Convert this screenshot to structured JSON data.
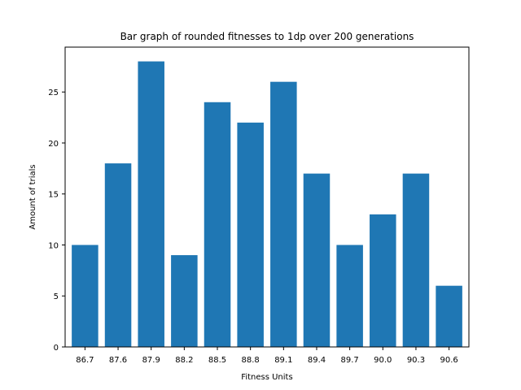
{
  "chart_data": {
    "type": "bar",
    "title": "Bar graph of rounded fitnesses to 1dp over 200 generations",
    "xlabel": "Fitness Units",
    "ylabel": "Amount of trials",
    "categories": [
      "86.7",
      "87.6",
      "87.9",
      "88.2",
      "88.5",
      "88.8",
      "89.1",
      "89.4",
      "89.7",
      "90.0",
      "90.3",
      "90.6"
    ],
    "values": [
      10,
      18,
      28,
      9,
      24,
      22,
      26,
      17,
      10,
      13,
      17,
      6
    ],
    "ylim": [
      0,
      29.4
    ],
    "yticks": [
      0,
      5,
      10,
      15,
      20,
      25
    ],
    "grid": false,
    "bar_color": "#1f77b4"
  }
}
